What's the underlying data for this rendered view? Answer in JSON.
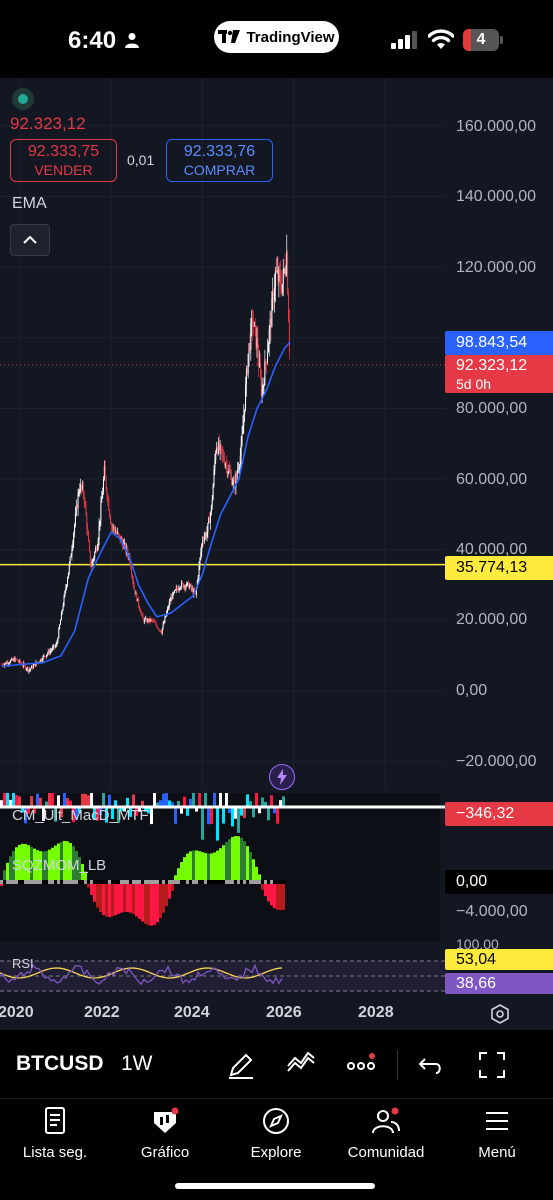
{
  "status_bar": {
    "time": "6:40",
    "app_pill": "TradingView",
    "battery_level": "4"
  },
  "chart": {
    "last_price": "92.323,12",
    "sell": {
      "price": "92.333,75",
      "label": "VENDER"
    },
    "spread": "0,01",
    "buy": {
      "price": "92.333,76",
      "label": "COMPRAR"
    },
    "ema_label": "EMA",
    "price_axis": [
      "160.000,00",
      "140.000,00",
      "120.000,00",
      "80.000,00",
      "60.000,00",
      "40.000,00",
      "20.000,00",
      "0,00",
      "−20.000,00"
    ],
    "ema_value": "98.843,54",
    "last_price_tag": "92.323,12",
    "countdown": "5d 0h",
    "level_line": "35.774,13",
    "indicators": {
      "macd_name": "CM_Ult_MacD_MTF",
      "macd_value": "−346,32",
      "sqz_name": "SQZMOM_LB",
      "sqz_zero": "0,00",
      "sqz_axis": "−4.000,00",
      "rsi_name": "RSI",
      "rsi_axis_top": "100,00",
      "rsi_value": "53,04",
      "rsi_ma_value": "38,66"
    },
    "time_axis": [
      "2020",
      "2022",
      "2024",
      "2026",
      "2028"
    ]
  },
  "chart_data": {
    "type": "line",
    "title": "",
    "xlabel": "",
    "ylabel": "",
    "ylim": [
      -20000,
      160000
    ],
    "xlim": [
      2019.6,
      2028.6
    ],
    "series": [
      {
        "name": "",
        "x": [
          2019.6,
          2019.9,
          2020.2,
          2020.5,
          2020.8,
          2021.0,
          2021.1,
          2021.3,
          2021.4,
          2021.55,
          2021.7,
          2021.85,
          2022.0,
          2022.2,
          2022.4,
          2022.5,
          2022.7,
          2022.9,
          2023.1,
          2023.3,
          2023.5,
          2023.7,
          2023.85,
          2024.0,
          2024.1,
          2024.2,
          2024.3,
          2024.5,
          2024.7,
          2024.85,
          2025.0,
          2025.1,
          2025.2,
          2025.3,
          2025.5,
          2025.6,
          2025.75,
          2025.85,
          2025.92
        ],
        "values": [
          7500,
          9000,
          6000,
          9500,
          13000,
          29000,
          37000,
          58000,
          56000,
          35000,
          42000,
          62000,
          47000,
          43000,
          38000,
          29000,
          20000,
          20000,
          16800,
          26000,
          30000,
          30000,
          27000,
          43000,
          45000,
          52000,
          70000,
          65000,
          58000,
          68000,
          95000,
          105000,
          98000,
          84000,
          105000,
          118000,
          115000,
          124000,
          92323
        ]
      },
      {
        "name": "EMA",
        "x": [
          2019.6,
          2020.0,
          2020.5,
          2020.9,
          2021.2,
          2021.5,
          2021.8,
          2022.0,
          2022.2,
          2022.4,
          2022.6,
          2022.8,
          2023.0,
          2023.3,
          2023.6,
          2023.8,
          2024.0,
          2024.2,
          2024.4,
          2024.6,
          2024.8,
          2025.0,
          2025.2,
          2025.4,
          2025.6,
          2025.8,
          2025.92
        ],
        "values": [
          7000,
          7500,
          8000,
          10000,
          17000,
          32000,
          40000,
          45000,
          43000,
          38000,
          30000,
          25000,
          21000,
          22000,
          25000,
          27000,
          33000,
          42000,
          50000,
          55000,
          60000,
          72000,
          80000,
          85000,
          92000,
          97000,
          98843
        ]
      }
    ],
    "reference_lines": [
      {
        "y": 35774.13
      }
    ],
    "grid": true
  }
}
